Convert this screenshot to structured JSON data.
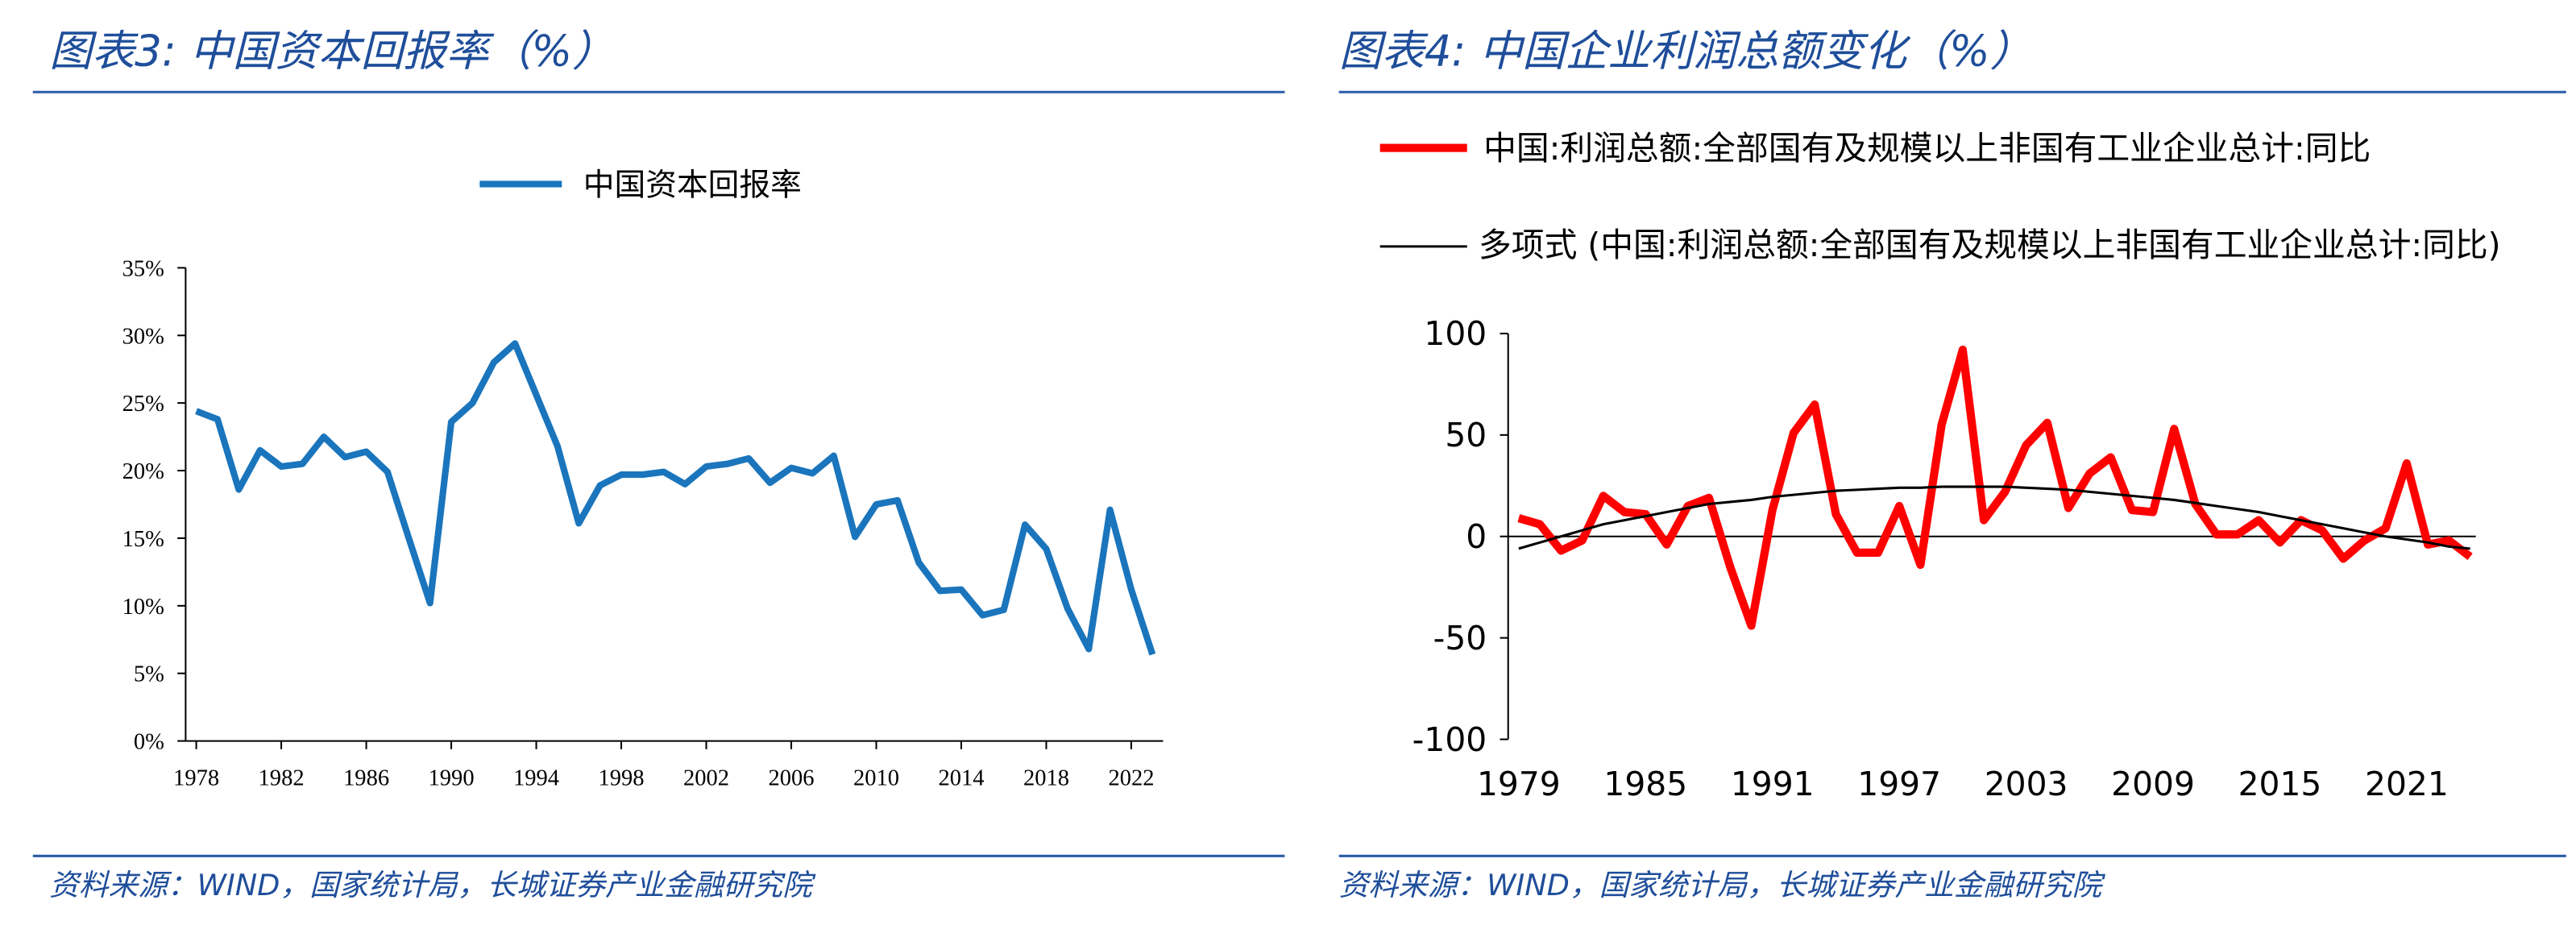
{
  "chart_data": [
    {
      "type": "line",
      "title": "图表3:  中国资本回报率（%）",
      "source": "资料来源：WIND，国家统计局，长城证券产业金融研究院",
      "x": [
        1978,
        1979,
        1980,
        1981,
        1982,
        1983,
        1984,
        1985,
        1986,
        1987,
        1988,
        1989,
        1990,
        1991,
        1992,
        1993,
        1994,
        1995,
        1996,
        1997,
        1998,
        1999,
        2000,
        2001,
        2002,
        2003,
        2004,
        2005,
        2006,
        2007,
        2008,
        2009,
        2010,
        2011,
        2012,
        2013,
        2014,
        2015,
        2016,
        2017,
        2018,
        2019,
        2020,
        2021,
        2022,
        2023
      ],
      "series": [
        {
          "name": "中国资本回报率",
          "color": "#1a75bc",
          "values": [
            24.4,
            23.8,
            18.6,
            21.5,
            20.3,
            20.5,
            22.5,
            21.0,
            21.4,
            19.9,
            15.0,
            10.2,
            23.6,
            25.0,
            28.0,
            29.4,
            25.6,
            21.8,
            16.1,
            18.9,
            19.7,
            19.7,
            19.9,
            19.0,
            20.3,
            20.5,
            20.9,
            19.1,
            20.2,
            19.8,
            21.1,
            15.1,
            17.5,
            17.8,
            13.2,
            11.1,
            11.2,
            9.3,
            9.7,
            16.0,
            14.2,
            9.8,
            6.8,
            17.1,
            11.2,
            6.4
          ]
        }
      ],
      "xlim": [
        1977.5,
        2023.5
      ],
      "xticks": [
        1978,
        1982,
        1986,
        1990,
        1994,
        1998,
        2002,
        2006,
        2010,
        2014,
        2018,
        2022
      ],
      "ylim": [
        0,
        35
      ],
      "yticks": [
        {
          "value": 0,
          "label": "0%"
        },
        {
          "value": 5,
          "label": "5%"
        },
        {
          "value": 10,
          "label": "10%"
        },
        {
          "value": 15,
          "label": "15%"
        },
        {
          "value": 20,
          "label": "20%"
        },
        {
          "value": 25,
          "label": "25%"
        },
        {
          "value": 30,
          "label": "30%"
        },
        {
          "value": 35,
          "label": "35%"
        }
      ]
    },
    {
      "type": "line",
      "title": "图表4:  中国企业利润总额变化（%）",
      "source": "资料来源：WIND，国家统计局，长城证券产业金融研究院",
      "x": [
        1979,
        1980,
        1981,
        1982,
        1983,
        1984,
        1985,
        1986,
        1987,
        1988,
        1989,
        1990,
        1991,
        1992,
        1993,
        1994,
        1995,
        1996,
        1997,
        1998,
        1999,
        2000,
        2001,
        2002,
        2003,
        2004,
        2005,
        2006,
        2007,
        2008,
        2009,
        2010,
        2011,
        2012,
        2013,
        2014,
        2015,
        2016,
        2017,
        2018,
        2019,
        2020,
        2021,
        2022,
        2023,
        2024
      ],
      "series": [
        {
          "name": "中国:利润总额:全部国有及规模以上非国有工业企业总计:同比",
          "color": "#ff0000",
          "values": [
            9,
            6,
            -7,
            -2,
            20,
            12,
            11,
            -4,
            15,
            19,
            -15,
            -44,
            13,
            51,
            65,
            11,
            -8,
            -8,
            15,
            -14,
            55,
            92,
            8,
            22,
            45,
            56,
            14,
            31,
            39,
            13,
            12,
            53,
            16,
            1,
            1,
            8,
            -3,
            8,
            3,
            -11,
            -2,
            4,
            36,
            -4,
            -2,
            -10
          ]
        },
        {
          "name": "多项式 (中国:利润总额:全部国有及规模以上非国有工业企业总计:同比)",
          "color": "#000000",
          "values": [
            -6,
            -3,
            0,
            3,
            6,
            8,
            10,
            12,
            14,
            16,
            17,
            18,
            19.5,
            20.5,
            21.5,
            22.5,
            23,
            23.5,
            24,
            24,
            24.5,
            24.5,
            24.5,
            24.5,
            24,
            23.5,
            23,
            22,
            21,
            20,
            19,
            18,
            16.5,
            15,
            13.5,
            12,
            10,
            8,
            6,
            4,
            2,
            0,
            -1.5,
            -3,
            -5,
            -6
          ]
        }
      ],
      "xlim": [
        1978.5,
        2024.5
      ],
      "xticks": [
        1979,
        1985,
        1991,
        1997,
        2003,
        2009,
        2015,
        2021
      ],
      "ylim": [
        -100,
        100
      ],
      "yticks": [
        -100,
        -50,
        0,
        50,
        100
      ]
    }
  ]
}
